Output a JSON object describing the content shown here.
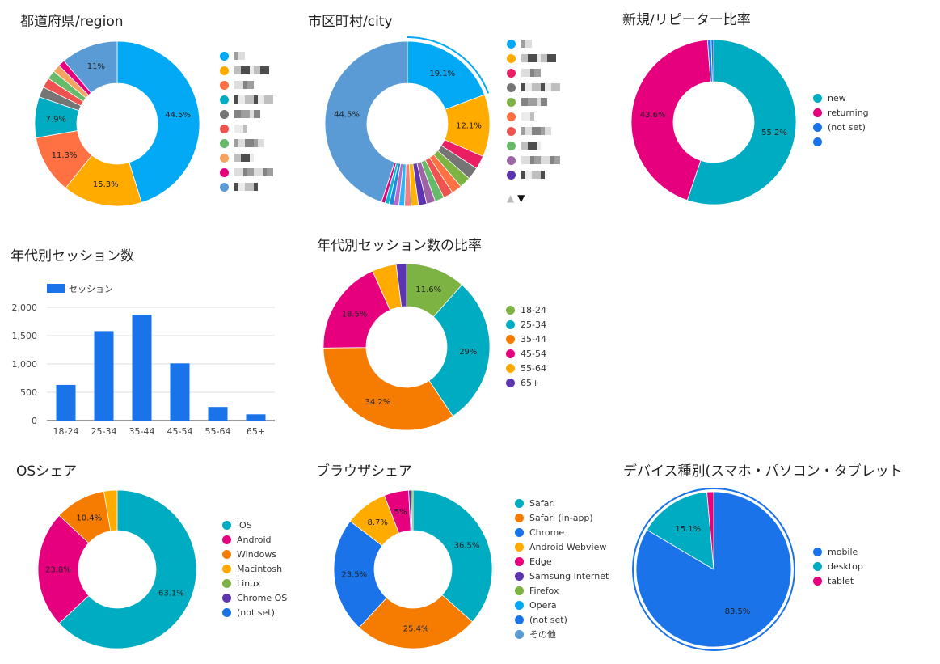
{
  "region": {
    "title": "都道府県/region",
    "chart_data": {
      "type": "pie",
      "donut": true,
      "slices": [
        {
          "value": 44.5,
          "label": "44.5%",
          "color": "#03a9f4"
        },
        {
          "value": 15.3,
          "label": "15.3%",
          "color": "#ffab00"
        },
        {
          "value": 11.3,
          "label": "11.3%",
          "color": "#ff7043"
        },
        {
          "value": 7.9,
          "label": "7.9%",
          "color": "#00acc1"
        },
        {
          "value": 2.0,
          "label": "",
          "color": "#757575"
        },
        {
          "value": 1.9,
          "label": "",
          "color": "#ef5350"
        },
        {
          "value": 1.7,
          "label": "",
          "color": "#66bb6a"
        },
        {
          "value": 1.5,
          "label": "",
          "color": "#f4a460"
        },
        {
          "value": 1.3,
          "label": "",
          "color": "#e6007e"
        },
        {
          "value": 11.0,
          "label": "11%",
          "color": "#5b9bd5"
        }
      ]
    },
    "legend_colors": [
      "#03a9f4",
      "#ffab00",
      "#ff7043",
      "#00acc1",
      "#757575",
      "#ef5350",
      "#66bb6a",
      "#f4a460",
      "#e6007e",
      "#5b9bd5"
    ]
  },
  "city": {
    "title": "市区町村/city",
    "chart_data": {
      "type": "pie",
      "donut": true,
      "slices": [
        {
          "value": 19.1,
          "label": "19.1%",
          "color": "#03a9f4"
        },
        {
          "value": 12.1,
          "label": "12.1%",
          "color": "#ffab00"
        },
        {
          "value": 2.6,
          "label": "",
          "color": "#e91e63"
        },
        {
          "value": 2.4,
          "label": "",
          "color": "#757575"
        },
        {
          "value": 2.2,
          "label": "",
          "color": "#7cb342"
        },
        {
          "value": 2.0,
          "label": "",
          "color": "#ff7043"
        },
        {
          "value": 1.9,
          "label": "",
          "color": "#ef5350"
        },
        {
          "value": 1.8,
          "label": "",
          "color": "#66bb6a"
        },
        {
          "value": 1.7,
          "label": "",
          "color": "#9c64a6"
        },
        {
          "value": 1.6,
          "label": "",
          "color": "#5e35b1"
        },
        {
          "value": 1.4,
          "label": "",
          "color": "#ffb300"
        },
        {
          "value": 1.3,
          "label": "",
          "color": "#f08080"
        },
        {
          "value": 1.1,
          "label": "",
          "color": "#29b6f6"
        },
        {
          "value": 1.0,
          "label": "",
          "color": "#ba68c8"
        },
        {
          "value": 0.9,
          "label": "",
          "color": "#1e88e5"
        },
        {
          "value": 0.8,
          "label": "",
          "color": "#00bcd4"
        },
        {
          "value": 0.7,
          "label": "",
          "color": "#e6007e"
        },
        {
          "value": 44.5,
          "label": "44.5%",
          "color": "#5b9bd5"
        }
      ]
    },
    "legend_colors": [
      "#03a9f4",
      "#ffab00",
      "#e91e63",
      "#757575",
      "#7cb342",
      "#ff7043",
      "#ef5350",
      "#66bb6a",
      "#9c64a6",
      "#5e35b1"
    ],
    "pager_prev": "▲",
    "pager_next": "▼"
  },
  "newret": {
    "title": "新規/リピーター比率",
    "chart_data": {
      "type": "pie",
      "donut": true,
      "slices": [
        {
          "value": 55.2,
          "label": "55.2%",
          "color": "#00acc1"
        },
        {
          "value": 43.6,
          "label": "43.6%",
          "color": "#e6007e"
        },
        {
          "value": 0.7,
          "label": "",
          "color": "#1a73e8"
        },
        {
          "value": 0.5,
          "label": "",
          "color": "#1a73e8"
        }
      ]
    },
    "legend": [
      {
        "label": "new",
        "color": "#00acc1"
      },
      {
        "label": "returning",
        "color": "#e6007e"
      },
      {
        "label": "(not set)",
        "color": "#1a73e8"
      },
      {
        "label": "",
        "color": "#1a73e8"
      }
    ]
  },
  "agebar": {
    "title": "年代別セッション数",
    "chart_data": {
      "type": "bar",
      "categories": [
        "18-24",
        "25-34",
        "35-44",
        "45-54",
        "55-64",
        "65+"
      ],
      "series": [
        {
          "name": "セッション",
          "values": [
            630,
            1580,
            1870,
            1010,
            240,
            110
          ]
        }
      ],
      "ylim": [
        0,
        2000
      ],
      "yticks": [
        "0",
        "500",
        "1,000",
        "1,500",
        "2,000"
      ],
      "ytick_values": [
        0,
        500,
        1000,
        1500,
        2000
      ],
      "color": "#1a73e8",
      "legend_position": "top-left"
    }
  },
  "agepie": {
    "title": "年代別セッション数の比率",
    "chart_data": {
      "type": "pie",
      "donut": true,
      "slices": [
        {
          "value": 11.6,
          "label": "11.6%",
          "color": "#7cb342"
        },
        {
          "value": 29.0,
          "label": "29%",
          "color": "#00acc1"
        },
        {
          "value": 34.2,
          "label": "34.2%",
          "color": "#f57c00"
        },
        {
          "value": 18.5,
          "label": "18.5%",
          "color": "#e6007e"
        },
        {
          "value": 4.7,
          "label": "",
          "color": "#ffab00"
        },
        {
          "value": 2.0,
          "label": "",
          "color": "#5e35b1"
        }
      ]
    },
    "legend": [
      {
        "label": "18-24",
        "color": "#7cb342"
      },
      {
        "label": "25-34",
        "color": "#00acc1"
      },
      {
        "label": "35-44",
        "color": "#f57c00"
      },
      {
        "label": "45-54",
        "color": "#e6007e"
      },
      {
        "label": "55-64",
        "color": "#ffab00"
      },
      {
        "label": "65+",
        "color": "#5e35b1"
      }
    ]
  },
  "os": {
    "title": "OSシェア",
    "chart_data": {
      "type": "pie",
      "donut": true,
      "slices": [
        {
          "value": 63.1,
          "label": "63.1%",
          "color": "#00acc1"
        },
        {
          "value": 23.8,
          "label": "23.8%",
          "color": "#e6007e"
        },
        {
          "value": 10.4,
          "label": "10.4%",
          "color": "#f57c00"
        },
        {
          "value": 2.7,
          "label": "",
          "color": "#ffab00"
        }
      ]
    },
    "legend": [
      {
        "label": "iOS",
        "color": "#00acc1"
      },
      {
        "label": "Android",
        "color": "#e6007e"
      },
      {
        "label": "Windows",
        "color": "#f57c00"
      },
      {
        "label": "Macintosh",
        "color": "#ffab00"
      },
      {
        "label": "Linux",
        "color": "#7cb342"
      },
      {
        "label": "Chrome OS",
        "color": "#5e35b1"
      },
      {
        "label": "(not set)",
        "color": "#1a73e8"
      }
    ]
  },
  "browser": {
    "title": "ブラウザシェア",
    "chart_data": {
      "type": "pie",
      "donut": true,
      "slices": [
        {
          "value": 36.5,
          "label": "36.5%",
          "color": "#00acc1"
        },
        {
          "value": 25.4,
          "label": "25.4%",
          "color": "#f57c00"
        },
        {
          "value": 23.5,
          "label": "23.5%",
          "color": "#1a73e8"
        },
        {
          "value": 8.7,
          "label": "8.7%",
          "color": "#ffab00"
        },
        {
          "value": 5.0,
          "label": "5%",
          "color": "#e6007e"
        },
        {
          "value": 0.5,
          "label": "",
          "color": "#5e35b1"
        },
        {
          "value": 0.4,
          "label": "",
          "color": "#7cb342"
        }
      ]
    },
    "legend": [
      {
        "label": "Safari",
        "color": "#00acc1"
      },
      {
        "label": "Safari (in-app)",
        "color": "#f57c00"
      },
      {
        "label": "Chrome",
        "color": "#1a73e8"
      },
      {
        "label": "Android Webview",
        "color": "#ffab00"
      },
      {
        "label": "Edge",
        "color": "#e6007e"
      },
      {
        "label": "Samsung Internet",
        "color": "#5e35b1"
      },
      {
        "label": "Firefox",
        "color": "#7cb342"
      },
      {
        "label": "Opera",
        "color": "#03a9f4"
      },
      {
        "label": "(not set)",
        "color": "#1a73e8"
      },
      {
        "label": "その他",
        "color": "#5b9bd5"
      }
    ]
  },
  "device": {
    "title": "デバイス種別(スマホ・パソコン・タブレット",
    "chart_data": {
      "type": "pie",
      "donut": false,
      "slices": [
        {
          "value": 83.5,
          "label": "83.5%",
          "color": "#1a73e8"
        },
        {
          "value": 15.1,
          "label": "15.1%",
          "color": "#00acc1"
        },
        {
          "value": 1.4,
          "label": "",
          "color": "#e6007e"
        }
      ]
    },
    "legend": [
      {
        "label": "mobile",
        "color": "#1a73e8"
      },
      {
        "label": "desktop",
        "color": "#00acc1"
      },
      {
        "label": "tablet",
        "color": "#e6007e"
      }
    ]
  }
}
